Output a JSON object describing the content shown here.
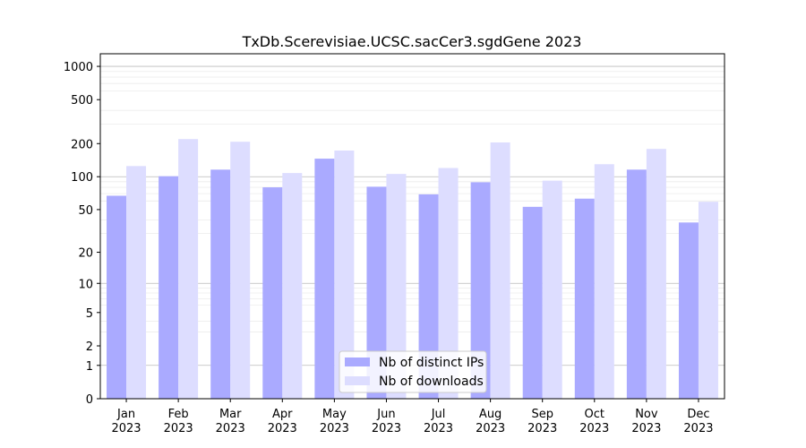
{
  "chart_data": {
    "type": "bar",
    "title": "TxDb.Scerevisiae.UCSC.sacCer3.sgdGene 2023",
    "xlabel": "",
    "ylabel": "",
    "yscale": "log(1+y)",
    "ylim": [
      0,
      1300
    ],
    "yticks": [
      0,
      1,
      2,
      5,
      10,
      20,
      50,
      100,
      200,
      500,
      1000
    ],
    "grid": true,
    "legend_position": "lower center",
    "categories": [
      [
        "Jan",
        "2023"
      ],
      [
        "Feb",
        "2023"
      ],
      [
        "Mar",
        "2023"
      ],
      [
        "Apr",
        "2023"
      ],
      [
        "May",
        "2023"
      ],
      [
        "Jun",
        "2023"
      ],
      [
        "Jul",
        "2023"
      ],
      [
        "Aug",
        "2023"
      ],
      [
        "Sep",
        "2023"
      ],
      [
        "Oct",
        "2023"
      ],
      [
        "Nov",
        "2023"
      ],
      [
        "Dec",
        "2023"
      ]
    ],
    "series": [
      {
        "name": "Nb of distinct IPs",
        "color": "#aaaaff",
        "values": [
          67,
          101,
          116,
          80,
          146,
          81,
          69,
          89,
          53,
          63,
          116,
          38
        ]
      },
      {
        "name": "Nb of downloads",
        "color": "#ddddff",
        "values": [
          125,
          220,
          208,
          108,
          173,
          106,
          120,
          205,
          92,
          130,
          179,
          59
        ]
      }
    ]
  }
}
